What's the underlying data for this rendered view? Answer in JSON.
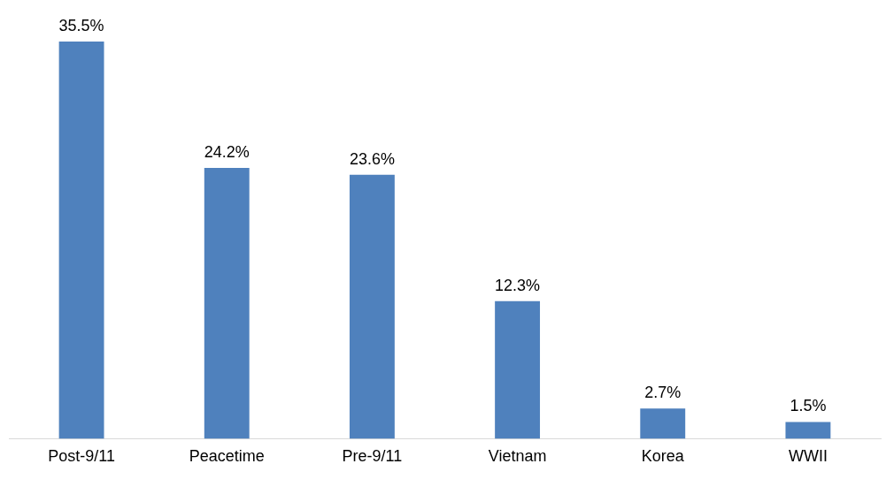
{
  "chart_data": {
    "type": "bar",
    "categories": [
      "Post-9/11",
      "Peacetime",
      "Pre-9/11",
      "Vietnam",
      "Korea",
      "WWII"
    ],
    "values": [
      35.5,
      24.2,
      23.6,
      12.3,
      2.7,
      1.5
    ],
    "color": "#4f81bd",
    "data_labels": true,
    "value_labels": [
      "35.5%",
      "24.2%",
      "23.6%",
      "12.3%",
      "2.7%",
      "1.5%"
    ],
    "grid": false,
    "legend": false,
    "tick_labels": "x"
  }
}
